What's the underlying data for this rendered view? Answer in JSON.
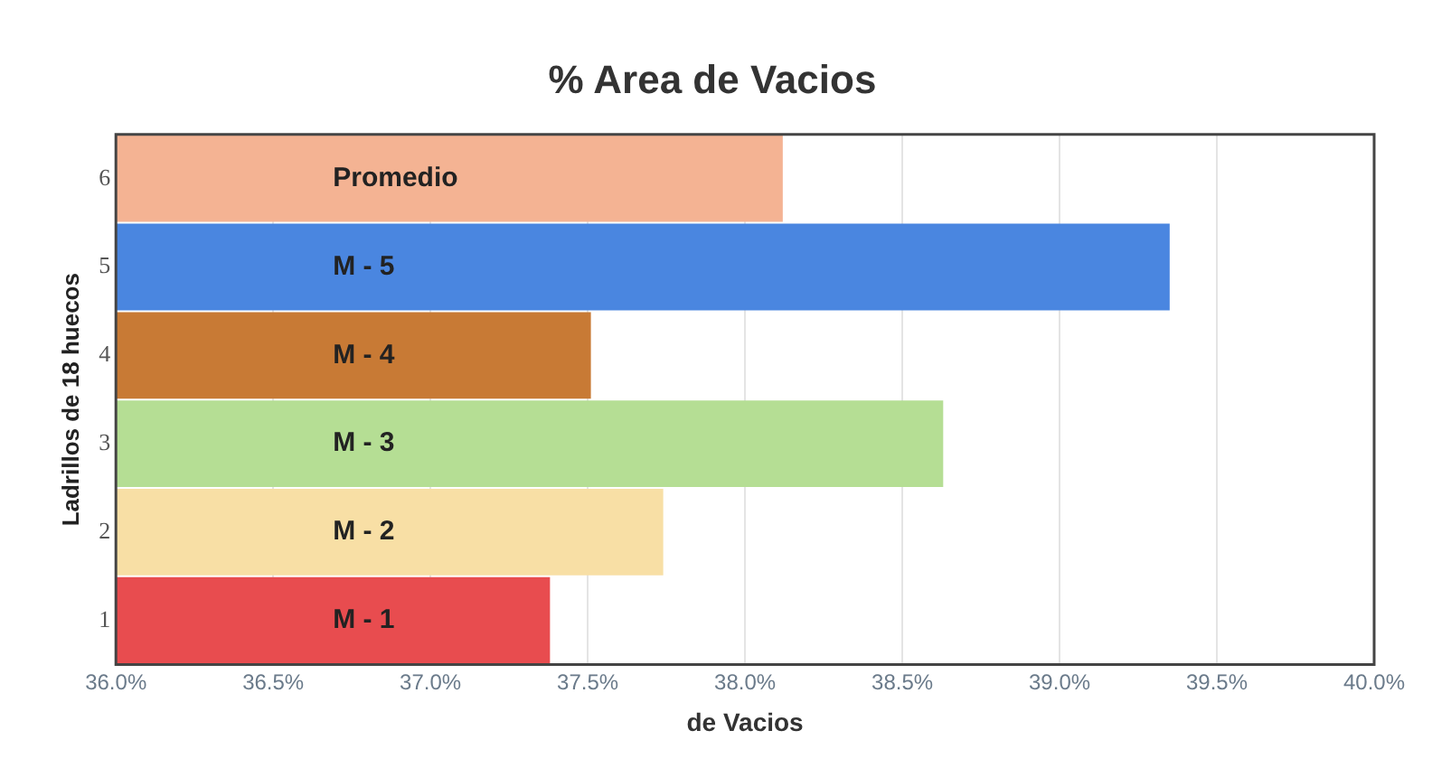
{
  "chart_data": {
    "type": "bar",
    "orientation": "horizontal",
    "title": "% Area de Vacios",
    "xlabel": "de Vacios",
    "ylabel": "Ladrillos de 18 huecos",
    "categories": [
      "6",
      "5",
      "4",
      "3",
      "2",
      "1"
    ],
    "values": [
      38.12,
      39.35,
      37.51,
      38.63,
      37.74,
      37.38
    ],
    "colors": [
      "#f4b393",
      "#4a86e0",
      "#c87a35",
      "#b5de94",
      "#f8dfa5",
      "#e84c4f"
    ],
    "xlim": [
      36,
      40
    ],
    "xticks": [
      {
        "value": 36,
        "label": "36.0%"
      },
      {
        "value": 36.5,
        "label": "36.5%"
      },
      {
        "value": 37,
        "label": "37.0%"
      },
      {
        "value": 37.5,
        "label": "37.5%"
      },
      {
        "value": 38,
        "label": "38.0%"
      },
      {
        "value": 38.5,
        "label": "38.5%"
      },
      {
        "value": 39,
        "label": "39.0%"
      },
      {
        "value": 39.5,
        "label": "39.5%"
      },
      {
        "value": 40,
        "label": "40.0%"
      }
    ],
    "grid": "x",
    "annotations": [
      {
        "text": "Promedio",
        "y": "6"
      },
      {
        "text": "M - 5",
        "y": "5"
      },
      {
        "text": "M - 4",
        "y": "4"
      },
      {
        "text": "M - 3",
        "y": "3"
      },
      {
        "text": "M - 2",
        "y": "2"
      },
      {
        "text": "M - 1",
        "y": "1"
      }
    ]
  }
}
